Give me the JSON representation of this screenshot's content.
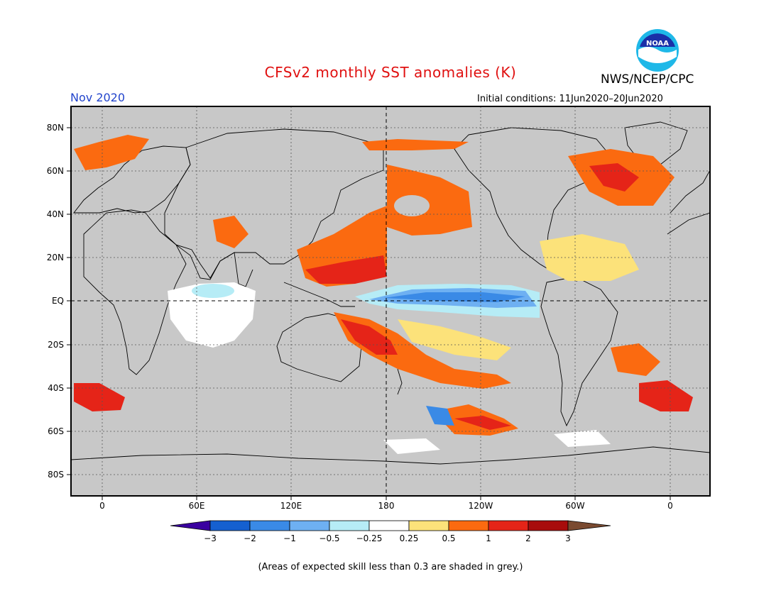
{
  "title": "CFSv2 monthly SST anomalies (K)",
  "organization": "NWS/NCEP/CPC",
  "logo_text": "NOAA",
  "valid_month": "Nov 2020",
  "initial_conditions": "Initial conditions: 11Jun2020–20Jun2020",
  "footnote": "(Areas of expected skill less than 0.3 are shaded in grey.)",
  "map": {
    "lat_labels": [
      "80N",
      "60N",
      "40N",
      "20N",
      "EQ",
      "20S",
      "40S",
      "60S",
      "80S"
    ],
    "lon_labels": [
      "0",
      "60E",
      "120E",
      "180",
      "120W",
      "60W",
      "0"
    ],
    "colors": {
      "land_grey": "#c8c8c8",
      "ocean_white": "#ffffff"
    }
  },
  "colorbar": {
    "labels": [
      "−3",
      "−2",
      "−1",
      "−0.5",
      "−0.25",
      "0.25",
      "0.5",
      "1",
      "2",
      "3"
    ],
    "colors": [
      "#3a00a0",
      "#1560d0",
      "#3a8ae6",
      "#6eb0f2",
      "#b6ecf6",
      "#ffffff",
      "#fce27a",
      "#fb6a10",
      "#e52418",
      "#a80c0c",
      "#7a4a30"
    ]
  }
}
